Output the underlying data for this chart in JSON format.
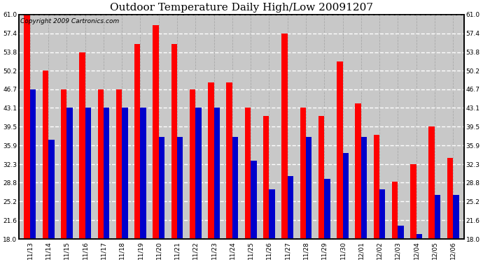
{
  "title": "Outdoor Temperature Daily High/Low 20091207",
  "copyright": "Copyright 2009 Cartronics.com",
  "dates": [
    "11/13",
    "11/14",
    "11/15",
    "11/16",
    "11/17",
    "11/18",
    "11/19",
    "11/20",
    "11/21",
    "11/22",
    "11/23",
    "11/24",
    "11/25",
    "11/26",
    "11/27",
    "11/28",
    "11/29",
    "11/30",
    "12/01",
    "12/02",
    "12/03",
    "12/04",
    "12/05",
    "12/06"
  ],
  "highs": [
    61.0,
    50.2,
    46.7,
    53.8,
    46.7,
    46.7,
    55.4,
    59.0,
    55.4,
    46.7,
    48.0,
    48.0,
    43.1,
    41.5,
    57.4,
    43.1,
    41.5,
    52.0,
    44.0,
    38.0,
    29.0,
    32.3,
    39.5,
    33.5
  ],
  "lows": [
    46.7,
    37.0,
    43.1,
    43.1,
    43.1,
    43.1,
    43.1,
    37.5,
    37.5,
    43.1,
    43.1,
    37.5,
    33.0,
    27.5,
    30.0,
    37.5,
    29.5,
    34.5,
    37.5,
    27.5,
    20.5,
    19.0,
    26.5,
    26.5
  ],
  "high_color": "#ff0000",
  "low_color": "#0000cc",
  "bg_color": "#ffffff",
  "plot_bg_color": "#c8c8c8",
  "grid_color_h": "#ffffff",
  "grid_color_v": "#aaaaaa",
  "yticks": [
    18.0,
    21.6,
    25.2,
    28.8,
    32.3,
    35.9,
    39.5,
    43.1,
    46.7,
    50.2,
    53.8,
    57.4,
    61.0
  ],
  "ymin": 18.0,
  "ymax": 61.0,
  "bar_width": 0.32,
  "title_fontsize": 11,
  "copyright_fontsize": 6.5,
  "tick_fontsize": 6.5,
  "ytick_fontsize": 6.5
}
